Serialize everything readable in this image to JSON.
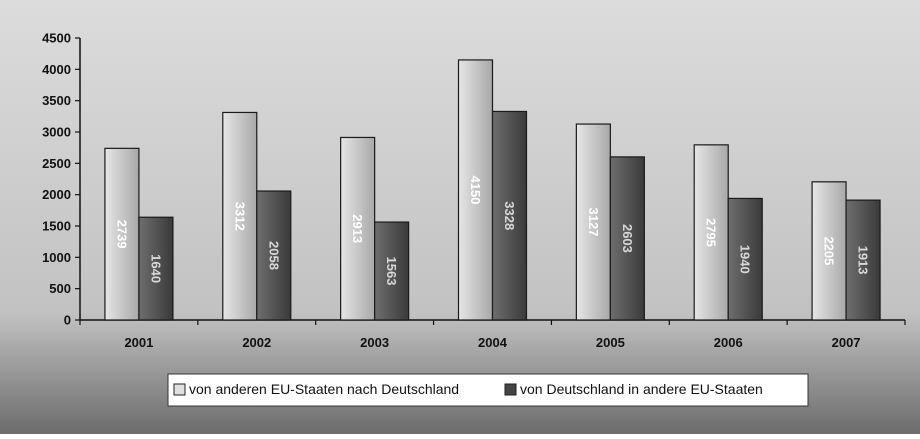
{
  "colors": {
    "background_top": "#dcdcdc",
    "background_bottom": "#6c6c6c",
    "bar_light": "#c4c4c4",
    "bar_dark": "#555555",
    "label_light": "#ffffff",
    "label_dark": "#d8d8d8"
  },
  "chart_data": {
    "type": "bar",
    "title": "",
    "xlabel": "",
    "ylabel": "",
    "categories": [
      "2001",
      "2002",
      "2003",
      "2004",
      "2005",
      "2006",
      "2007"
    ],
    "ylim": [
      0,
      4500
    ],
    "yticks": [
      0,
      500,
      1000,
      1500,
      2000,
      2500,
      3000,
      3500,
      4000,
      4500
    ],
    "grid": false,
    "legend_position": "bottom",
    "series": [
      {
        "name": "von anderen EU-Staaten nach Deutschland",
        "values": [
          2739,
          3312,
          2913,
          4150,
          3127,
          2795,
          2205
        ],
        "labels": [
          "2739",
          "3312",
          "2913",
          "4150",
          "3127",
          "2795",
          "2205"
        ]
      },
      {
        "name": "von Deutschland in andere EU-Staaten",
        "values": [
          1640,
          2058,
          1563,
          3328,
          2603,
          1940,
          1913
        ],
        "labels": [
          "1640",
          "2058",
          "1563",
          "3328",
          "2603",
          "1940",
          "1913"
        ]
      }
    ]
  }
}
